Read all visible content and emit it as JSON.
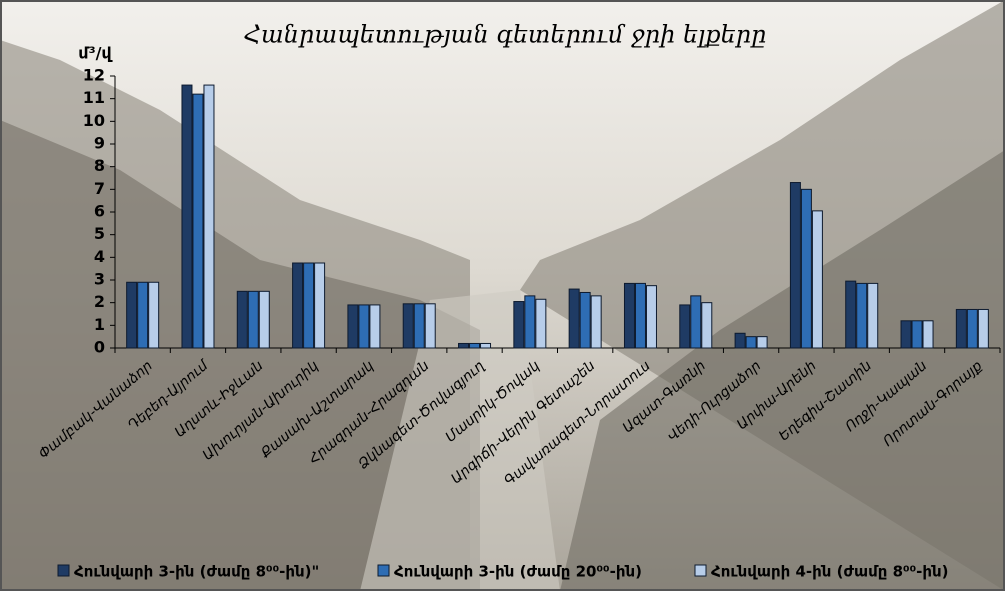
{
  "chart_data": {
    "type": "bar",
    "title": "Հանրապետության գետերում ջրի ելքերը",
    "y_label": "մ³/վ",
    "categories": [
      "Փամբակ-Վանաձոր",
      "Դեբեդ-Այրում",
      "Աղստև-Իջևան",
      "Ախուրյան-Ախուրիկ",
      "Քասախ-Աշտարակ",
      "Հրազդան-Հրազդան",
      "Ձկնագետ-Ծովագյուղ",
      "Մասրիկ-Ծովակ",
      "Արգիճի-Վերին Գետաշեն",
      "Գավառագետ-Նորատուս",
      "Ազատ-Գառնի",
      "Վեդի-Ուրցաձոր",
      "Արփա-Արենի",
      "Եղեգիս-Շատին",
      "Ողջի-Կապան",
      "Որոտան-Գորայք"
    ],
    "series": [
      {
        "name": "Հունվարի 3-ին (ժամը 8⁰⁰-ին)\"",
        "color": "#1f3b64",
        "values": [
          2.9,
          11.6,
          2.5,
          3.75,
          1.9,
          1.95,
          0.2,
          2.05,
          2.6,
          2.85,
          1.9,
          0.65,
          7.3,
          2.95,
          1.2,
          1.7
        ]
      },
      {
        "name": "Հունվարի 3-ին (ժամը 20⁰⁰-ին)",
        "color": "#2e6db4",
        "values": [
          2.9,
          11.2,
          2.5,
          3.75,
          1.9,
          1.95,
          0.2,
          2.3,
          2.45,
          2.85,
          2.3,
          0.5,
          7.0,
          2.85,
          1.2,
          1.7
        ]
      },
      {
        "name": "Հունվարի 4-ին (ժամը 8⁰⁰-ին)",
        "color": "#b7cde9",
        "values": [
          2.9,
          11.6,
          2.5,
          3.75,
          1.9,
          1.95,
          0.2,
          2.15,
          2.3,
          2.75,
          2.0,
          0.5,
          6.05,
          2.85,
          1.2,
          1.7
        ]
      }
    ],
    "ylim": [
      0,
      12
    ],
    "yticks": [
      0,
      1,
      2,
      3,
      4,
      5,
      6,
      7,
      8,
      9,
      10,
      11,
      12
    ]
  }
}
